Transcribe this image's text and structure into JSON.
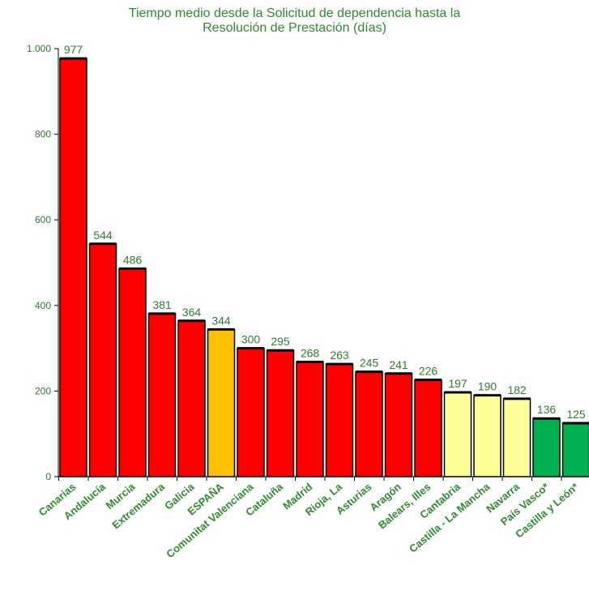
{
  "chart_data": {
    "type": "bar",
    "title_lines": [
      "Tiempo medio desde la Solicitud de dependencia hasta la",
      "Resolución de Prestación (días)"
    ],
    "categories": [
      "Canarias",
      "Andalucía",
      "Murcia",
      "Extremadura",
      "Galicia",
      "ESPAÑA",
      "Comunitat Valenciana",
      "Cataluña",
      "Madrid",
      "Rioja, La",
      "Asturias",
      "Aragón",
      "Balears, Illes",
      "Cantabria",
      "Castilla - La Mancha",
      "Navarra",
      "País Vasco*",
      "Castilla y León*"
    ],
    "values": [
      977,
      544,
      486,
      381,
      364,
      344,
      300,
      295,
      268,
      263,
      245,
      241,
      226,
      197,
      190,
      182,
      136,
      125
    ],
    "data_labels": [
      "977",
      "544",
      "486",
      "381",
      "364",
      "344",
      "300",
      "295",
      "268",
      "263",
      "245",
      "241",
      "226",
      "197",
      "190",
      "182",
      "136",
      "125"
    ],
    "bar_colors": [
      "#ff0000",
      "#ff0000",
      "#ff0000",
      "#ff0000",
      "#ff0000",
      "#ffc000",
      "#ff0000",
      "#ff0000",
      "#ff0000",
      "#ff0000",
      "#ff0000",
      "#ff0000",
      "#ff0000",
      "#ffff99",
      "#ffff99",
      "#ffff99",
      "#00b050",
      "#00b050"
    ],
    "ylim": [
      0,
      1000
    ],
    "yticks": [
      0,
      200,
      400,
      600,
      800,
      1000
    ],
    "ytick_labels": [
      "0",
      "200",
      "400",
      "600",
      "800",
      "1.000"
    ],
    "grid": false,
    "legend": "none",
    "xlabel": "",
    "ylabel": ""
  }
}
